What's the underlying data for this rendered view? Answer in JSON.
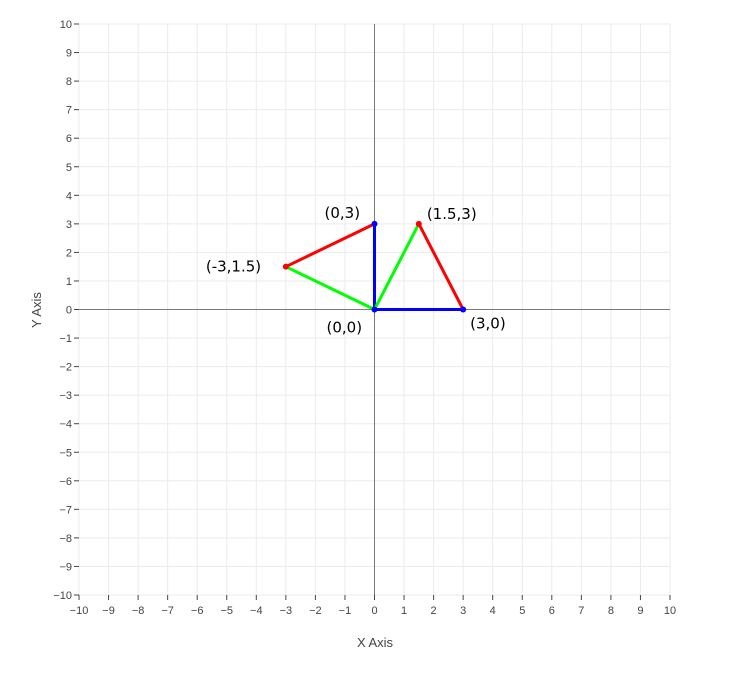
{
  "chart_data": {
    "type": "line",
    "title": "",
    "xlabel": "X Axis",
    "ylabel": "Y Axis",
    "xlim": [
      -10,
      10
    ],
    "ylim": [
      -10,
      10
    ],
    "grid": true,
    "x_ticks": [
      "−10",
      "−9",
      "−8",
      "−7",
      "−6",
      "−5",
      "−4",
      "−3",
      "−2",
      "−1",
      "0",
      "1",
      "2",
      "3",
      "4",
      "5",
      "6",
      "7",
      "8",
      "9",
      "10"
    ],
    "y_ticks": [
      "−10",
      "−9",
      "−8",
      "−7",
      "−6",
      "−5",
      "−4",
      "−3",
      "−2",
      "−1",
      "0",
      "1",
      "2",
      "3",
      "4",
      "5",
      "6",
      "7",
      "8",
      "9",
      "10"
    ],
    "series": [
      {
        "color": "#0000ff",
        "x": [
          0,
          3
        ],
        "y": [
          0,
          0
        ]
      },
      {
        "color": "#0000ff",
        "x": [
          0,
          0
        ],
        "y": [
          0,
          3
        ]
      },
      {
        "color": "#ff0000",
        "x": [
          3,
          1.5
        ],
        "y": [
          0,
          3
        ]
      },
      {
        "color": "#ff0000",
        "x": [
          0,
          -3
        ],
        "y": [
          3,
          1.5
        ]
      },
      {
        "color": "#00ff00",
        "x": [
          0,
          1.5
        ],
        "y": [
          0,
          3
        ]
      },
      {
        "color": "#00ff00",
        "x": [
          0,
          -3
        ],
        "y": [
          0,
          1.5
        ]
      }
    ],
    "points": [
      {
        "x": 0,
        "y": 0,
        "color": "#0000ff"
      },
      {
        "x": 3,
        "y": 0,
        "color": "#0000ff"
      },
      {
        "x": 0,
        "y": 3,
        "color": "#0000ff"
      },
      {
        "x": 1.5,
        "y": 3,
        "color": "#ff0000"
      },
      {
        "x": -3,
        "y": 1.5,
        "color": "#ff0000"
      }
    ],
    "annotations": [
      {
        "text": "(0,0)",
        "x": 0,
        "y": 0,
        "position": "bottom-left"
      },
      {
        "text": "(3,0)",
        "x": 3,
        "y": 0,
        "position": "bottom-right"
      },
      {
        "text": "(0,3)",
        "x": 0,
        "y": 3,
        "position": "top-left"
      },
      {
        "text": "(1.5,3)",
        "x": 1.5,
        "y": 3,
        "position": "top-right"
      },
      {
        "text": "(-3,1.5)",
        "x": -3,
        "y": 1.5,
        "position": "left"
      }
    ]
  }
}
